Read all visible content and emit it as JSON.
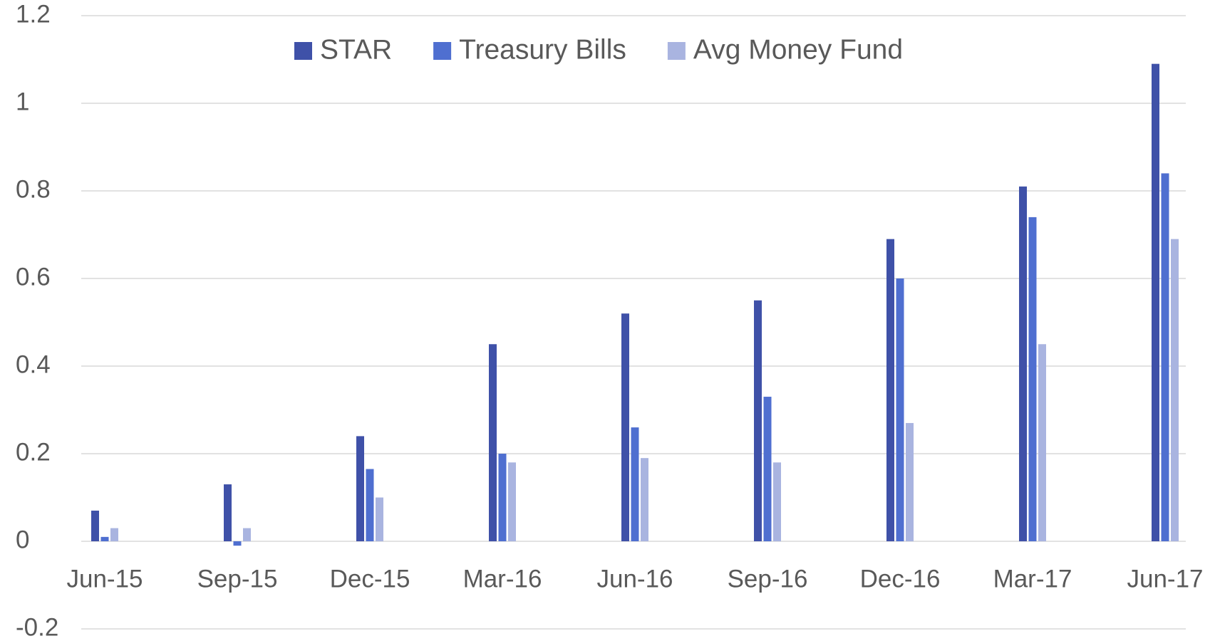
{
  "chart_data": {
    "type": "bar",
    "categories": [
      "Jun-15",
      "Sep-15",
      "Dec-15",
      "Mar-16",
      "Jun-16",
      "Sep-16",
      "Dec-16",
      "Mar-17",
      "Jun-17"
    ],
    "series": [
      {
        "name": "STAR",
        "color": "#3f51a8",
        "values": [
          0.07,
          0.13,
          0.24,
          0.45,
          0.52,
          0.55,
          0.69,
          0.81,
          1.09
        ]
      },
      {
        "name": "Treasury Bills",
        "color": "#4f6fd0",
        "values": [
          0.01,
          -0.01,
          0.165,
          0.2,
          0.26,
          0.33,
          0.6,
          0.74,
          0.84
        ]
      },
      {
        "name": "Avg Money Fund",
        "color": "#a9b4e0",
        "values": [
          0.03,
          0.03,
          0.1,
          0.18,
          0.19,
          0.18,
          0.27,
          0.45,
          0.69
        ]
      }
    ],
    "ylim": [
      -0.2,
      1.2
    ],
    "yticks": [
      -0.2,
      0,
      0.2,
      0.4,
      0.6,
      0.8,
      1,
      1.2
    ],
    "grid": true,
    "legend": "top"
  }
}
